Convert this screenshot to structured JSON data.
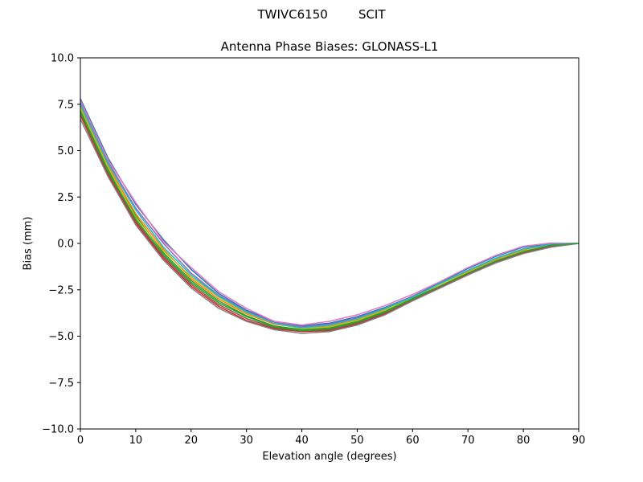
{
  "header": {
    "suptitle": "TWIVC6150        SCIT"
  },
  "chart_data": {
    "type": "line",
    "title": "Antenna Phase Biases: GLONASS-L1",
    "xlabel": "Elevation angle (degrees)",
    "ylabel": "Bias (mm)",
    "xlim": [
      0,
      90
    ],
    "ylim": [
      -10,
      10
    ],
    "xticks": [
      0,
      10,
      20,
      30,
      40,
      50,
      60,
      70,
      80,
      90
    ],
    "xtick_labels": [
      "0",
      "10",
      "20",
      "30",
      "40",
      "50",
      "60",
      "70",
      "80",
      "90"
    ],
    "yticks": [
      -10,
      -7.5,
      -5,
      -2.5,
      0,
      2.5,
      5,
      7.5,
      10
    ],
    "ytick_labels": [
      "−10.0",
      "−7.5",
      "−5.0",
      "−2.5",
      "0.0",
      "2.5",
      "5.0",
      "7.5",
      "10.0"
    ],
    "grid": false,
    "legend": "none",
    "x": [
      0,
      5,
      10,
      15,
      20,
      25,
      30,
      35,
      40,
      45,
      50,
      55,
      60,
      65,
      70,
      75,
      80,
      85,
      90
    ],
    "series": [
      {
        "color": "#1f77b4",
        "values": [
          7.8,
          4.6,
          2.1,
          0.2,
          -1.4,
          -2.7,
          -3.6,
          -4.2,
          -4.45,
          -4.3,
          -3.95,
          -3.45,
          -2.85,
          -2.1,
          -1.35,
          -0.7,
          -0.2,
          0.0,
          0.0
        ]
      },
      {
        "color": "#ff7f0e",
        "values": [
          7.4,
          4.2,
          1.6,
          -0.3,
          -1.9,
          -3.0,
          -3.8,
          -4.35,
          -4.55,
          -4.45,
          -4.1,
          -3.55,
          -2.9,
          -2.2,
          -1.5,
          -0.85,
          -0.35,
          -0.05,
          0.0
        ]
      },
      {
        "color": "#2ca02c",
        "values": [
          7.2,
          4.0,
          1.5,
          -0.5,
          -2.0,
          -3.1,
          -3.9,
          -4.45,
          -4.65,
          -4.55,
          -4.2,
          -3.65,
          -2.95,
          -2.3,
          -1.6,
          -0.95,
          -0.4,
          -0.1,
          0.0
        ]
      },
      {
        "color": "#d62728",
        "values": [
          6.9,
          3.7,
          1.1,
          -0.8,
          -2.3,
          -3.4,
          -4.15,
          -4.6,
          -4.75,
          -4.7,
          -4.35,
          -3.8,
          -3.05,
          -2.35,
          -1.65,
          -1.05,
          -0.5,
          -0.15,
          0.0
        ]
      },
      {
        "color": "#9467bd",
        "values": [
          7.6,
          4.4,
          1.9,
          0.0,
          -1.6,
          -2.8,
          -3.65,
          -4.25,
          -4.5,
          -4.35,
          -4.0,
          -3.5,
          -2.85,
          -2.15,
          -1.45,
          -0.8,
          -0.3,
          -0.02,
          0.0
        ]
      },
      {
        "color": "#8c564b",
        "values": [
          7.0,
          3.8,
          1.2,
          -0.7,
          -2.2,
          -3.3,
          -4.05,
          -4.55,
          -4.7,
          -4.65,
          -4.3,
          -3.75,
          -3.0,
          -2.3,
          -1.6,
          -1.0,
          -0.45,
          -0.12,
          0.0
        ]
      },
      {
        "color": "#e377c2",
        "values": [
          7.7,
          4.5,
          2.2,
          0.1,
          -1.3,
          -2.6,
          -3.5,
          -4.2,
          -4.4,
          -4.2,
          -3.85,
          -3.35,
          -2.75,
          -2.05,
          -1.3,
          -0.65,
          -0.15,
          0.02,
          0.0
        ]
      },
      {
        "color": "#7f7f7f",
        "values": [
          6.7,
          3.6,
          1.0,
          -0.9,
          -2.4,
          -3.5,
          -4.2,
          -4.65,
          -4.85,
          -4.75,
          -4.4,
          -3.85,
          -3.1,
          -2.4,
          -1.7,
          -1.05,
          -0.55,
          -0.2,
          0.0
        ]
      },
      {
        "color": "#bcbd22",
        "values": [
          7.3,
          4.1,
          1.4,
          -0.4,
          -1.8,
          -2.9,
          -3.75,
          -4.3,
          -4.6,
          -4.5,
          -4.15,
          -3.6,
          -2.9,
          -2.2,
          -1.55,
          -0.9,
          -0.4,
          -0.08,
          0.0
        ]
      },
      {
        "color": "#17becf",
        "values": [
          7.5,
          4.3,
          1.8,
          -0.2,
          -1.7,
          -2.85,
          -3.7,
          -4.3,
          -4.55,
          -4.4,
          -4.05,
          -3.5,
          -2.9,
          -2.15,
          -1.45,
          -0.8,
          -0.3,
          -0.05,
          0.0
        ]
      },
      {
        "color": "#2ca02c",
        "values": [
          7.1,
          3.9,
          1.3,
          -0.6,
          -2.1,
          -3.2,
          -3.95,
          -4.5,
          -4.7,
          -4.6,
          -4.25,
          -3.7,
          -3.0,
          -2.3,
          -1.6,
          -0.95,
          -0.45,
          -0.1,
          0.0
        ]
      }
    ]
  }
}
